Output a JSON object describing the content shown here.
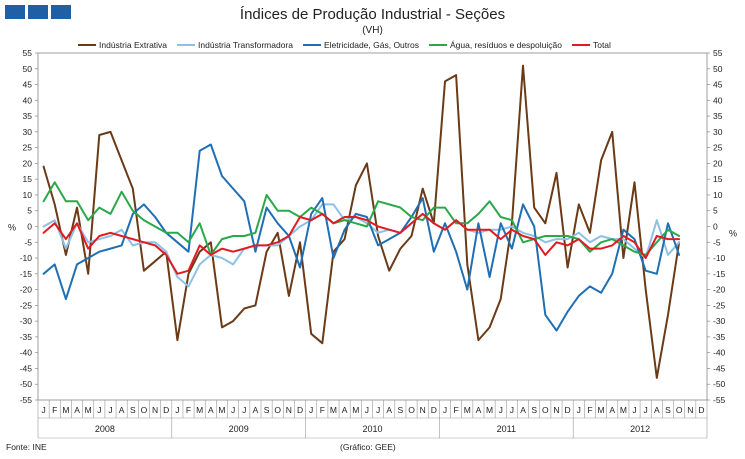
{
  "header": {
    "title": "Índices de Produção Industrial - Seções",
    "subtitle": "(VH)"
  },
  "footer": {
    "source": "Fonte: INE",
    "graphic": "(Gráfico: GEE)"
  },
  "colors": {
    "extrativa": "#6b3a16",
    "transformadora": "#8ec0e6",
    "eletricidade": "#1f6fb4",
    "agua": "#2aa84a",
    "total": "#e11b22",
    "brand": "#1f5fa6"
  },
  "chart_data": {
    "type": "line",
    "title": "Índices de Produção Industrial - Seções",
    "subtitle": "(VH)",
    "ylabel_left": "%",
    "ylabel_right": "%",
    "ylim": [
      -55,
      55
    ],
    "yticks": [
      55,
      50,
      45,
      40,
      35,
      30,
      25,
      20,
      15,
      10,
      5,
      0,
      -5,
      -10,
      -15,
      -20,
      -25,
      -30,
      -35,
      -40,
      -45,
      -50,
      -55
    ],
    "months": [
      "J",
      "F",
      "M",
      "A",
      "M",
      "J",
      "J",
      "A",
      "S",
      "O",
      "N",
      "D"
    ],
    "years": [
      "2008",
      "2009",
      "2010",
      "2011",
      "2012"
    ],
    "series": [
      {
        "key": "extrativa",
        "name": "Indústria Extrativa",
        "values": [
          19,
          7,
          -9,
          6,
          -15,
          29,
          30,
          21,
          12,
          -14,
          -11,
          -8,
          -36,
          -15,
          -8,
          -5,
          -32,
          -30,
          -26,
          -25,
          -8,
          -2,
          -22,
          -5,
          -34,
          -37,
          -8,
          -4,
          13,
          20,
          -3,
          -14,
          -7,
          -3,
          12,
          1,
          46,
          48,
          -12,
          -36,
          -32,
          -23,
          1,
          51,
          6,
          1,
          17,
          -13,
          7,
          -2,
          21,
          30,
          -10,
          14,
          -20,
          -48,
          -28,
          -5
        ],
        "color": "#6b3a16"
      },
      {
        "key": "transformadora",
        "name": "Indústria Transformadora",
        "values": [
          0,
          2,
          -7,
          1,
          -5,
          -4,
          -3,
          -1,
          -6,
          -5,
          -5,
          -8,
          -16,
          -19,
          -12,
          -9,
          -10,
          -12,
          -7,
          -6,
          -6,
          -6,
          -3,
          0,
          2,
          7,
          7,
          2,
          3,
          1,
          -2,
          -1,
          -2,
          1,
          4,
          1,
          -1,
          2,
          -1,
          -2,
          -1,
          -1,
          0,
          -2,
          -3,
          -5,
          -4,
          -4,
          -2,
          -5,
          -3,
          -4,
          -4,
          -7,
          -10,
          2,
          -9,
          -5
        ],
        "color": "#8ec0e6"
      },
      {
        "key": "eletricidade",
        "name": "Eletricidade, Gás, Outros",
        "values": [
          -15,
          -12,
          -23,
          -12,
          -10,
          -8,
          -7,
          -6,
          4,
          7,
          3,
          -2,
          -5,
          -8,
          24,
          26,
          16,
          12,
          8,
          -8,
          6,
          1,
          -3,
          -13,
          4,
          9,
          -10,
          -1,
          4,
          3,
          -6,
          -4,
          -2,
          3,
          9,
          -8,
          1,
          -8,
          -20,
          1,
          -16,
          1,
          -7,
          7,
          0,
          -28,
          -33,
          -27,
          -22,
          -19,
          -21,
          -15,
          -1,
          -4,
          -14,
          -15,
          1,
          -9
        ],
        "color": "#1f6fb4"
      },
      {
        "key": "agua",
        "name": "Água, resíduos e despoluição",
        "values": [
          8,
          14,
          8,
          8,
          2,
          6,
          4,
          11,
          5,
          2,
          0,
          -2,
          -2,
          -5,
          1,
          -9,
          -4,
          -3,
          -3,
          -2,
          10,
          5,
          5,
          3,
          6,
          4,
          1,
          2,
          1,
          0,
          8,
          7,
          6,
          3,
          2,
          6,
          6,
          1,
          1,
          4,
          8,
          3,
          2,
          -5,
          -4,
          -3,
          -3,
          -3,
          -4,
          -8,
          -5,
          -4,
          -6,
          -8,
          -9,
          -5,
          -1,
          -3
        ],
        "color": "#2aa84a"
      },
      {
        "key": "total",
        "name": "Total",
        "values": [
          -2,
          1,
          -4,
          1,
          -7,
          -3,
          -2,
          -3,
          -4,
          -5,
          -6,
          -9,
          -15,
          -14,
          -6,
          -9,
          -7,
          -8,
          -7,
          -6,
          -6,
          -5,
          -3,
          3,
          2,
          4,
          1,
          3,
          3,
          2,
          0,
          -1,
          -2,
          1,
          4,
          1,
          -1,
          2,
          -1,
          -1,
          -1,
          -4,
          -1,
          -3,
          -4,
          -9,
          -5,
          -6,
          -4,
          -7,
          -7,
          -6,
          -3,
          -5,
          -10,
          -3,
          -4,
          -4
        ],
        "color": "#e11b22"
      }
    ]
  }
}
